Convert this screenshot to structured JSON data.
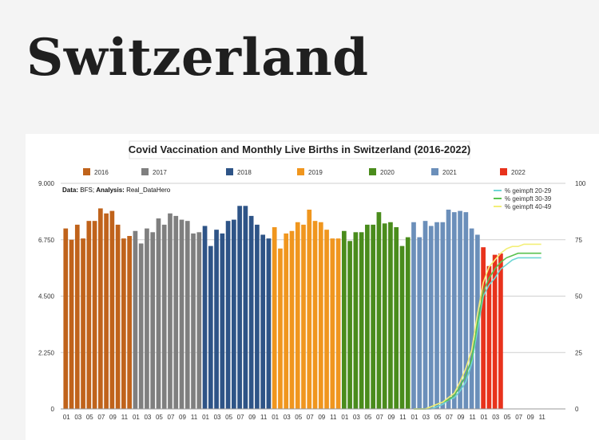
{
  "page": {
    "heading": "Switzerland"
  },
  "chart_data": {
    "type": "bar",
    "title": "Covid Vaccination and Monthly Live Births in Switzerland (2016-2022)",
    "source": {
      "data_label": "Data:",
      "data_value": "BFS",
      "analysis_label": "Analysis:",
      "analysis_value": "Real_DataHero"
    },
    "y_left": {
      "min": 0,
      "max": 9000,
      "ticks": [
        0,
        2250,
        4500,
        6750,
        9000
      ],
      "tick_labels": [
        "0",
        "2.250",
        "4.500",
        "6.750",
        "9.000"
      ]
    },
    "y_right": {
      "min": 0,
      "max": 100,
      "ticks": [
        0,
        25,
        50,
        75,
        100
      ],
      "tick_labels": [
        "0",
        "25",
        "50",
        "75",
        "100"
      ]
    },
    "x_tick_labels": [
      "01",
      "03",
      "05",
      "07",
      "09",
      "11",
      "01",
      "03",
      "05",
      "07",
      "09",
      "11",
      "01",
      "03",
      "05",
      "07",
      "09",
      "11",
      "01",
      "03",
      "05",
      "07",
      "09",
      "11",
      "01",
      "03",
      "05",
      "07",
      "09",
      "11",
      "01",
      "03",
      "05",
      "07",
      "09",
      "11",
      "01",
      "03",
      "05",
      "07",
      "09",
      "11"
    ],
    "series": [
      {
        "name": "2016",
        "color": "#c0631b",
        "values": [
          7200,
          6750,
          7350,
          6800,
          7500,
          7500,
          8000,
          7800,
          7900,
          7350,
          6800,
          6900
        ]
      },
      {
        "name": "2017",
        "color": "#7f7f7f",
        "values": [
          7100,
          6600,
          7200,
          7050,
          7600,
          7350,
          7800,
          7700,
          7550,
          7500,
          7000,
          7050
        ]
      },
      {
        "name": "2018",
        "color": "#2e5487",
        "values": [
          7300,
          6500,
          7150,
          7000,
          7500,
          7550,
          8100,
          8100,
          7700,
          7350,
          6950,
          6800
        ]
      },
      {
        "name": "2019",
        "color": "#f0961e",
        "values": [
          7250,
          6400,
          7000,
          7100,
          7450,
          7350,
          7950,
          7500,
          7450,
          7150,
          6800,
          6800
        ]
      },
      {
        "name": "2020",
        "color": "#4a8c1c",
        "values": [
          7100,
          6700,
          7050,
          7050,
          7350,
          7350,
          7850,
          7400,
          7450,
          7250,
          6500,
          6850
        ]
      },
      {
        "name": "2021",
        "color": "#6b8fba",
        "values": [
          7450,
          6850,
          7500,
          7300,
          7450,
          7450,
          7950,
          7850,
          7900,
          7850,
          7200,
          6950
        ]
      },
      {
        "name": "2022",
        "color": "#e8321c",
        "values": [
          6450,
          5700,
          6150,
          6200
        ]
      }
    ],
    "vaccination_lines": [
      {
        "name": "% geimpft 20-29",
        "color": "#6ed6d4",
        "values": [
          0,
          0,
          0,
          0,
          1,
          2,
          4,
          5,
          8,
          12,
          20,
          35,
          50,
          55,
          58,
          62,
          64,
          66,
          67,
          67,
          67,
          67,
          67
        ]
      },
      {
        "name": "% geimpft 30-39",
        "color": "#59c24f",
        "values": [
          0,
          0,
          0,
          1,
          2,
          3,
          4,
          6,
          10,
          15,
          22,
          38,
          52,
          58,
          62,
          65,
          67,
          68,
          69,
          69,
          69,
          69,
          69
        ]
      },
      {
        "name": "% geimpft 40-49",
        "color": "#f3ef78",
        "values": [
          0,
          0,
          0,
          1,
          2,
          3,
          5,
          7,
          12,
          18,
          26,
          42,
          56,
          63,
          66,
          69,
          71,
          72,
          72,
          73,
          73,
          73,
          73
        ]
      }
    ]
  }
}
